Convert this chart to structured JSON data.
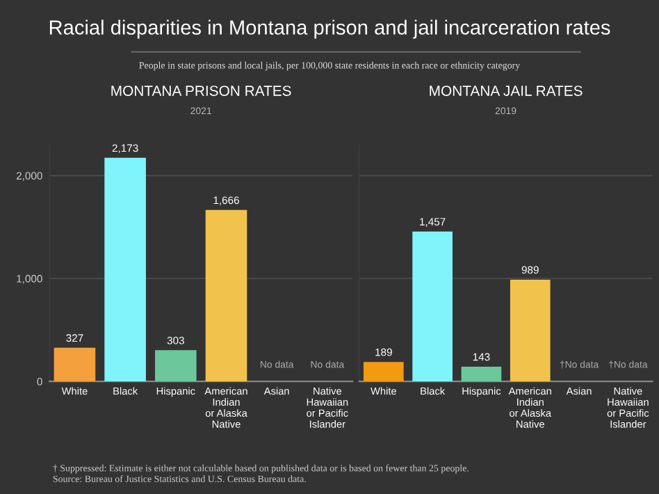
{
  "chart_data": [
    {
      "type": "bar",
      "title": "MONTANA PRISON RATES",
      "subtitle": "2021",
      "categories": [
        "White",
        "Black",
        "Hispanic",
        "American\nIndian\nor Alaska\nNative",
        "Asian",
        "Native\nHawaiian\nor Pacific\nIslander"
      ],
      "values": [
        327,
        2173,
        303,
        1666,
        null,
        null
      ],
      "colors": [
        "#f4a03c",
        "#80f4fb",
        "#6cc79a",
        "#f2c34c",
        "#888888",
        "#888888"
      ],
      "value_labels": [
        "327",
        "2,173",
        "303",
        "1,666",
        "No data",
        "No data"
      ],
      "ylim": [
        0,
        2300
      ],
      "yticks": [
        {
          "value": 0,
          "label": "0"
        },
        {
          "value": 1000,
          "label": "1,000"
        },
        {
          "value": 2000,
          "label": "2,000"
        }
      ],
      "grid": "y",
      "annotations": [
        "Racial disparities in Montana prison and jail incarceration rates",
        "People in state prisons and local jails, per 100,000 state residents in each race or ethnicity category",
        "† Suppressed: Estimate is either not calculable based on published data or is based on fewer than 25 people.\nSource: Bureau of Justice Statistics and U.S. Census Bureau data."
      ]
    },
    {
      "type": "bar",
      "title": "MONTANA JAIL RATES",
      "subtitle": "2019",
      "categories": [
        "White",
        "Black",
        "Hispanic",
        "American\nIndian\nor Alaska\nNative",
        "Asian",
        "Native\nHawaiian\nor Pacific\nIslander"
      ],
      "values": [
        189,
        1457,
        143,
        989,
        null,
        null
      ],
      "colors": [
        "#f39a10",
        "#80f4fb",
        "#6cc79a",
        "#f2c34c",
        "#888888",
        "#888888"
      ],
      "value_labels": [
        "189",
        "1,457",
        "143",
        "989",
        "†No data",
        "†No data"
      ],
      "ylim": [
        0,
        2300
      ],
      "yticks": [
        {
          "value": 0,
          "label": null
        },
        {
          "value": 1000,
          "label": null
        },
        {
          "value": 2000,
          "label": null
        }
      ],
      "tick_labels": "x",
      "grid": "y"
    }
  ]
}
